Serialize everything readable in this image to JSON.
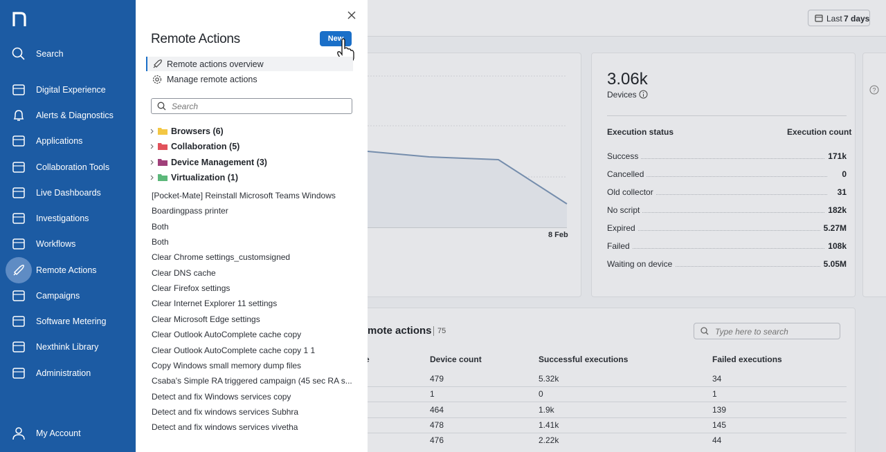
{
  "sidebar": {
    "items": [
      "Search",
      "Digital Experience",
      "Alerts & Diagnostics",
      "Applications",
      "Collaboration Tools",
      "Live Dashboards",
      "Investigations",
      "Workflows",
      "Remote Actions",
      "Campaigns",
      "Software Metering",
      "Nexthink Library",
      "Administration"
    ],
    "account": "My Account"
  },
  "panel": {
    "title": "Remote Actions",
    "new_button": "New",
    "links": [
      "Remote actions overview",
      "Manage remote actions"
    ],
    "search_placeholder": "Search",
    "folders": [
      "Browsers (6)",
      "Collaboration (5)",
      "Device Management (3)",
      "Virtualization (1)"
    ],
    "actions": [
      "[Pocket-Mate] Reinstall Microsoft Teams Windows",
      "Boardingpass printer",
      "Both",
      "Both",
      "Clear Chrome settings_customsigned",
      "Clear DNS cache",
      "Clear Firefox settings",
      "Clear Internet Explorer 11 settings",
      "Clear Microsoft Edge settings",
      "Clear Outlook AutoComplete cache copy",
      "Clear Outlook AutoComplete cache copy 1 1",
      "Copy Windows small memory dump files",
      "Csaba's Simple RA triggered campaign (45 sec RA s...",
      "Detect and fix Windows services copy",
      "Detect and fix windows services Subhra",
      "Detect and fix windows services vivetha"
    ]
  },
  "background": {
    "date_range": {
      "prefix": "Last",
      "value": "7 days"
    },
    "chart_label": "8 Feb",
    "summary": {
      "value": "3.06k",
      "label": "Devices",
      "status_header": "Execution status",
      "count_header": "Execution count",
      "rows": [
        [
          "Success",
          "171k"
        ],
        [
          "Cancelled",
          "0"
        ],
        [
          "Old collector",
          "31"
        ],
        [
          "No script",
          "182k"
        ],
        [
          "Expired",
          "5.27M"
        ],
        [
          "Failed",
          "108k"
        ],
        [
          "Waiting on device",
          "5.05M"
        ]
      ]
    },
    "table": {
      "title": "mote actions",
      "count": "75",
      "search_placeholder": "Type here to search",
      "headers": [
        "e",
        "Device count",
        "Successful executions",
        "Failed executions"
      ],
      "rows": [
        [
          "479",
          "5.32k",
          "34"
        ],
        [
          "1",
          "0",
          "1"
        ],
        [
          "464",
          "1.9k",
          "139"
        ],
        [
          "478",
          "1.41k",
          "145"
        ],
        [
          "476",
          "2.22k",
          "44"
        ]
      ]
    }
  }
}
